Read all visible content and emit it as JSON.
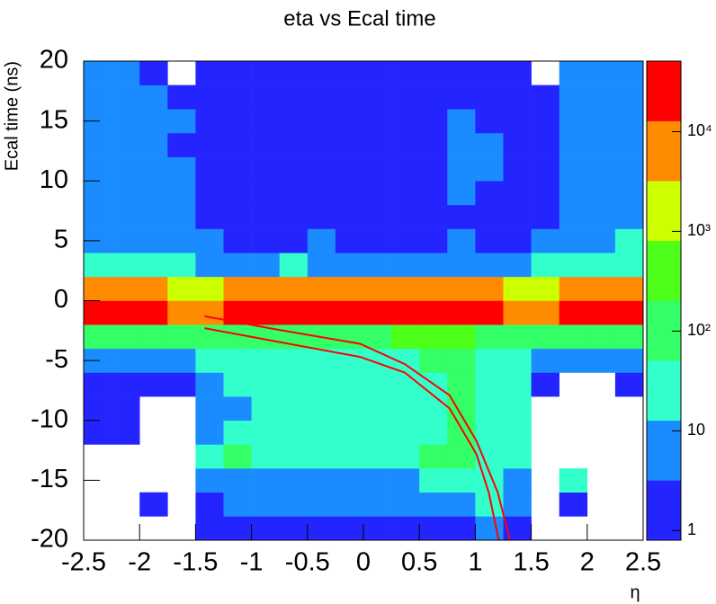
{
  "chart_data": {
    "type": "heatmap",
    "title": "eta vs Ecal time",
    "x_label": "η",
    "y_label": "Ecal time (ns)",
    "xlim": [
      -2.5,
      2.5
    ],
    "ylim": [
      -20,
      20
    ],
    "xticks": [
      -2.5,
      -2,
      -1.5,
      -1,
      -0.5,
      0,
      0.5,
      1,
      1.5,
      2,
      2.5
    ],
    "yticks": [
      -20,
      -15,
      -10,
      -5,
      0,
      5,
      10,
      15,
      20
    ],
    "z_log": true,
    "zlim": [
      0.8,
      51000
    ],
    "zticks": [
      1,
      10,
      {
        "value": 100,
        "label": "10²"
      },
      {
        "value": 1000,
        "label": "10³"
      },
      {
        "value": 10000,
        "label": "10⁴"
      }
    ],
    "palette": [
      "#2424ff",
      "#1a8cff",
      "#33ffcc",
      "#33ff66",
      "#4dff1a",
      "#ccff00",
      "#ff8c00",
      "#ff0000"
    ],
    "x_bins": [
      -2.5,
      -2.25,
      -2,
      -1.75,
      -1.5,
      -1.25,
      -1,
      -0.75,
      -0.5,
      -0.25,
      0,
      0.25,
      0.5,
      0.75,
      1,
      1.25,
      1.5,
      1.75,
      2,
      2.25,
      2.5
    ],
    "y_bins": [
      -20,
      -18,
      -16,
      -14,
      -12,
      -10,
      -8,
      -6,
      -4,
      -2,
      0,
      2,
      4,
      6,
      8,
      10,
      12,
      14,
      16,
      18,
      20
    ],
    "z": [
      [
        null,
        null,
        null,
        null,
        2,
        2,
        2,
        2,
        2,
        2,
        2,
        2,
        2,
        2,
        7,
        2,
        null,
        null,
        null,
        null
      ],
      [
        null,
        null,
        2,
        null,
        2,
        7,
        7,
        7,
        7,
        7,
        7,
        7,
        7,
        7,
        30,
        7,
        null,
        2,
        null,
        null
      ],
      [
        null,
        null,
        null,
        null,
        7,
        7,
        7,
        7,
        7,
        7,
        7,
        7,
        30,
        30,
        30,
        7,
        null,
        30,
        null,
        null
      ],
      [
        null,
        null,
        null,
        null,
        30,
        120,
        30,
        30,
        30,
        30,
        30,
        30,
        120,
        120,
        30,
        30,
        null,
        null,
        null,
        null
      ],
      [
        2,
        2,
        null,
        null,
        7,
        30,
        30,
        30,
        30,
        30,
        30,
        30,
        30,
        120,
        30,
        30,
        null,
        null,
        null,
        null
      ],
      [
        2,
        2,
        null,
        null,
        7,
        7,
        30,
        30,
        30,
        30,
        30,
        30,
        30,
        120,
        30,
        30,
        null,
        null,
        null,
        null
      ],
      [
        2,
        2,
        2,
        2,
        7,
        30,
        30,
        30,
        30,
        30,
        30,
        30,
        30,
        120,
        30,
        30,
        2,
        null,
        null,
        2
      ],
      [
        7,
        7,
        7,
        7,
        30,
        30,
        30,
        30,
        30,
        30,
        30,
        30,
        120,
        120,
        30,
        30,
        7,
        7,
        7,
        7
      ],
      [
        120,
        120,
        120,
        120,
        120,
        120,
        120,
        120,
        120,
        120,
        120,
        500,
        500,
        500,
        120,
        120,
        120,
        120,
        120,
        120
      ],
      [
        25000,
        25000,
        25000,
        7000,
        7000,
        25000,
        25000,
        25000,
        25000,
        25000,
        25000,
        25000,
        25000,
        25000,
        25000,
        7000,
        7000,
        25000,
        25000,
        25000
      ],
      [
        7000,
        7000,
        7000,
        2000,
        2000,
        7000,
        7000,
        7000,
        7000,
        7000,
        7000,
        7000,
        7000,
        7000,
        7000,
        2000,
        2000,
        7000,
        7000,
        7000
      ],
      [
        30,
        30,
        30,
        30,
        7,
        7,
        7,
        30,
        7,
        7,
        7,
        7,
        7,
        7,
        7,
        7,
        30,
        30,
        30,
        30
      ],
      [
        7,
        7,
        7,
        7,
        7,
        2,
        2,
        2,
        7,
        2,
        2,
        2,
        2,
        7,
        2,
        2,
        7,
        7,
        7,
        30
      ],
      [
        7,
        7,
        7,
        7,
        2,
        2,
        2,
        2,
        2,
        2,
        2,
        2,
        2,
        2,
        2,
        2,
        2,
        7,
        7,
        7
      ],
      [
        7,
        7,
        7,
        7,
        2,
        2,
        2,
        2,
        2,
        2,
        2,
        2,
        2,
        7,
        2,
        2,
        2,
        7,
        7,
        7
      ],
      [
        7,
        7,
        7,
        7,
        2,
        2,
        2,
        2,
        2,
        2,
        2,
        2,
        2,
        7,
        7,
        2,
        2,
        7,
        7,
        7
      ],
      [
        7,
        7,
        7,
        2,
        2,
        2,
        2,
        2,
        2,
        2,
        2,
        2,
        2,
        7,
        7,
        2,
        2,
        7,
        7,
        7
      ],
      [
        7,
        7,
        7,
        7,
        2,
        2,
        2,
        2,
        2,
        2,
        2,
        2,
        2,
        7,
        2,
        2,
        2,
        7,
        7,
        7
      ],
      [
        7,
        7,
        7,
        2,
        2,
        2,
        2,
        2,
        2,
        2,
        2,
        2,
        2,
        2,
        2,
        2,
        2,
        7,
        7,
        7
      ],
      [
        7,
        7,
        2,
        null,
        2,
        2,
        2,
        2,
        2,
        2,
        2,
        2,
        2,
        2,
        2,
        2,
        null,
        7,
        7,
        7
      ]
    ],
    "curves": [
      {
        "color": "#ff0000",
        "x": [
          -1.42,
          -0.84,
          -0.03,
          0.37,
          0.77,
          1.01,
          1.2,
          1.31
        ],
        "y": [
          -1.3,
          -2.3,
          -3.6,
          -5.3,
          -7.9,
          -11.7,
          -16,
          -20
        ]
      },
      {
        "color": "#ff0000",
        "x": [
          -1.42,
          -0.84,
          -0.03,
          0.37,
          0.77,
          1.01,
          1.12,
          1.21
        ],
        "y": [
          -2.3,
          -3.3,
          -4.7,
          -6,
          -9,
          -12.8,
          -16,
          -20
        ]
      }
    ]
  }
}
